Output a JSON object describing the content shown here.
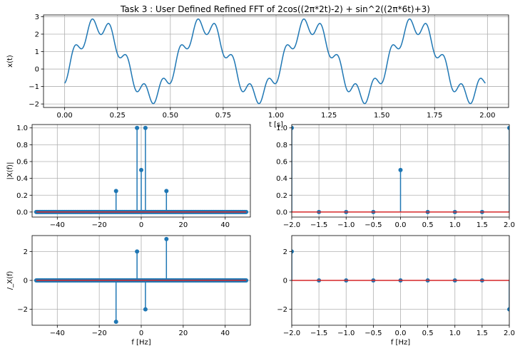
{
  "figure": {
    "title": "Task 3 : User Defined Refined FFT of 2cos((2π*2t)-2) + sin^2((2π*6t)+3)"
  },
  "colors": {
    "series": "#1f77b4",
    "baseline": "#d62728",
    "grid": "#b0b0b0"
  },
  "chart_data": [
    {
      "id": "time",
      "type": "line",
      "title": "Task 3 : User Defined Refined FFT of 2cos((2π*2t)-2) + sin^2((2π*6t)+3)",
      "xlabel": "t [s]",
      "ylabel": "x(t)",
      "xlim": [
        -0.1,
        2.1
      ],
      "ylim": [
        -2.2,
        3.1
      ],
      "xticks": [
        0.0,
        0.25,
        0.5,
        0.75,
        1.0,
        1.25,
        1.5,
        1.75,
        2.0
      ],
      "xtick_labels": [
        "0.00",
        "0.25",
        "0.50",
        "0.75",
        "1.00",
        "1.25",
        "1.50",
        "1.75",
        "2.00"
      ],
      "yticks": [
        -2,
        -1,
        0,
        1,
        2,
        3
      ],
      "ytick_labels": [
        "−2",
        "−1",
        "0",
        "1",
        "2",
        "3"
      ],
      "x_range": [
        0,
        1.99
      ],
      "grid": true,
      "series": [
        {
          "expression": "2cos((2π*2t)-2) + sin^2((2π*6t)+3)"
        }
      ]
    },
    {
      "id": "mag",
      "type": "stem",
      "xlabel": "",
      "ylabel": "|X(f)|",
      "xlim": [
        -52,
        52
      ],
      "ylim": [
        -0.06,
        1.04
      ],
      "xticks": [
        -40,
        -20,
        0,
        20,
        40
      ],
      "xtick_labels": [
        "−40",
        "−20",
        "0",
        "20",
        "40"
      ],
      "yticks": [
        0.0,
        0.2,
        0.4,
        0.6,
        0.8,
        1.0
      ],
      "ytick_labels": [
        "0.0",
        "0.2",
        "0.4",
        "0.6",
        "0.8",
        "1.0"
      ],
      "grid": true,
      "zero_range": [
        -50,
        50
      ],
      "zero_step": 0.5,
      "stems": [
        {
          "x": -12,
          "y": 0.25
        },
        {
          "x": -2,
          "y": 1.0
        },
        {
          "x": 0,
          "y": 0.5
        },
        {
          "x": 2,
          "y": 1.0
        },
        {
          "x": 12,
          "y": 0.25
        }
      ]
    },
    {
      "id": "mag_zoom",
      "type": "stem",
      "xlabel": "",
      "ylabel": "",
      "xlim": [
        -2.0,
        2.0
      ],
      "ylim": [
        -0.06,
        1.04
      ],
      "xticks": [
        -2.0,
        -1.5,
        -1.0,
        -0.5,
        0.0,
        0.5,
        1.0,
        1.5,
        2.0
      ],
      "xtick_labels": [
        "−2.0",
        "−1.5",
        "−1.0",
        "−0.5",
        "0.0",
        "0.5",
        "1.0",
        "1.5",
        "2.0"
      ],
      "yticks": [
        0.0,
        0.2,
        0.4,
        0.6,
        0.8,
        1.0
      ],
      "ytick_labels": [
        "0.0",
        "0.2",
        "0.4",
        "0.6",
        "0.8",
        "1.0"
      ],
      "grid": true,
      "stems": [
        {
          "x": -2.0,
          "y": 1.0
        },
        {
          "x": -1.5,
          "y": 0.0
        },
        {
          "x": -1.0,
          "y": 0.0
        },
        {
          "x": -0.5,
          "y": 0.0
        },
        {
          "x": 0.0,
          "y": 0.5
        },
        {
          "x": 0.5,
          "y": 0.0
        },
        {
          "x": 1.0,
          "y": 0.0
        },
        {
          "x": 1.5,
          "y": 0.0
        },
        {
          "x": 2.0,
          "y": 1.0
        }
      ]
    },
    {
      "id": "phase",
      "type": "stem",
      "xlabel": "f [Hz]",
      "ylabel": "/_X(f)",
      "xlim": [
        -52,
        52
      ],
      "ylim": [
        -3.1,
        3.1
      ],
      "xticks": [
        -40,
        -20,
        0,
        20,
        40
      ],
      "xtick_labels": [
        "−40",
        "−20",
        "0",
        "20",
        "40"
      ],
      "yticks": [
        -2,
        0,
        2
      ],
      "ytick_labels": [
        "−2",
        "0",
        "2"
      ],
      "grid": true,
      "zero_range": [
        -50,
        50
      ],
      "zero_step": 0.5,
      "stems": [
        {
          "x": -12,
          "y": -2.86
        },
        {
          "x": -2,
          "y": 2.0
        },
        {
          "x": 2,
          "y": -2.0
        },
        {
          "x": 12,
          "y": 2.86
        }
      ]
    },
    {
      "id": "phase_zoom",
      "type": "stem",
      "xlabel": "f [Hz]",
      "ylabel": "",
      "xlim": [
        -2.0,
        2.0
      ],
      "ylim": [
        -3.1,
        3.1
      ],
      "xticks": [
        -2.0,
        -1.5,
        -1.0,
        -0.5,
        0.0,
        0.5,
        1.0,
        1.5,
        2.0
      ],
      "xtick_labels": [
        "−2.0",
        "−1.5",
        "−1.0",
        "−0.5",
        "0.0",
        "0.5",
        "1.0",
        "1.5",
        "2.0"
      ],
      "yticks": [
        -2,
        0,
        2
      ],
      "ytick_labels": [
        "−2",
        "0",
        "2"
      ],
      "grid": true,
      "stems": [
        {
          "x": -2.0,
          "y": 2.0
        },
        {
          "x": -1.5,
          "y": 0.0
        },
        {
          "x": -1.0,
          "y": 0.0
        },
        {
          "x": -0.5,
          "y": 0.0
        },
        {
          "x": 0.0,
          "y": 0.0
        },
        {
          "x": 0.5,
          "y": 0.0
        },
        {
          "x": 1.0,
          "y": 0.0
        },
        {
          "x": 1.5,
          "y": 0.0
        },
        {
          "x": 2.0,
          "y": -2.0
        }
      ]
    }
  ]
}
